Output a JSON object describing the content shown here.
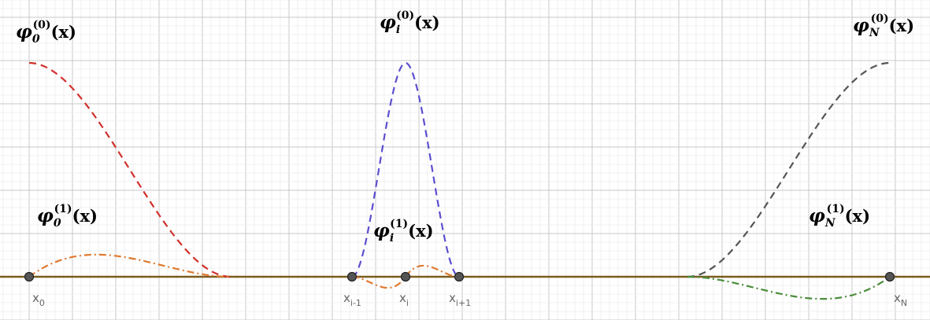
{
  "labels": {
    "phi0_0": {
      "base": "φ",
      "sub": "0",
      "sup": "(0)",
      "arg": "(x)"
    },
    "phi0_1": {
      "base": "φ",
      "sub": "0",
      "sup": "(1)",
      "arg": "(x)"
    },
    "phii_0": {
      "base": "φ",
      "sub": "i",
      "sup": "(0)",
      "arg": "(x)"
    },
    "phii_1": {
      "base": "φ",
      "sub": "i",
      "sup": "(1)",
      "arg": "(x)"
    },
    "phiN_0": {
      "base": "φ",
      "sub": "N",
      "sup": "(0)",
      "arg": "(x)"
    },
    "phiN_1": {
      "base": "φ",
      "sub": "N",
      "sup": "(1)",
      "arg": "(x)"
    }
  },
  "nodes": [
    {
      "name": "x",
      "sub": "0"
    },
    {
      "name": "x",
      "sub": "i-1"
    },
    {
      "name": "x",
      "sub": "i"
    },
    {
      "name": "x",
      "sub": "i+1"
    },
    {
      "name": "x",
      "sub": "N"
    }
  ],
  "colors": {
    "phi0_0": "#d0312d",
    "phii_0": "#5b4fcf",
    "phiN_0": "#555555",
    "phi_1": "#e07a30",
    "phiN_1": "#4a8c3a",
    "axis": "#7a5c1e",
    "node": "#555555"
  }
}
